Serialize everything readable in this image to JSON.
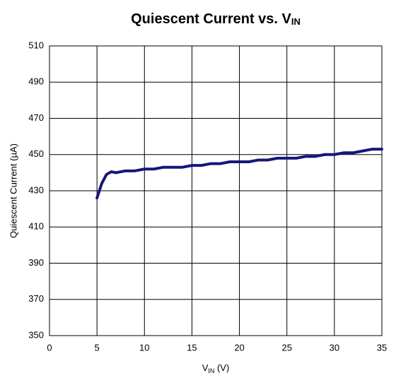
{
  "chart_data": {
    "type": "line",
    "title_parts": [
      {
        "text": "Quiescent Current vs. V",
        "sub": false
      },
      {
        "text": "IN",
        "sub": true
      }
    ],
    "x_label_parts": [
      {
        "text": "V",
        "sub": false
      },
      {
        "text": "IN",
        "sub": true
      },
      {
        "text": " (V)",
        "sub": false
      }
    ],
    "y_label": "Quiescent Current  (µA)",
    "x": [
      5,
      5.5,
      6,
      6.5,
      7,
      8,
      9,
      10,
      11,
      12,
      13,
      14,
      15,
      16,
      17,
      18,
      19,
      20,
      21,
      22,
      23,
      24,
      25,
      26,
      27,
      28,
      29,
      30,
      31,
      32,
      33,
      34,
      35
    ],
    "series": [
      {
        "name": "Quiescent Current",
        "color": "#16167a",
        "values": [
          426,
          434,
          439,
          440.5,
          440,
          441,
          441,
          442,
          442,
          443,
          443,
          443,
          444,
          444,
          445,
          445,
          446,
          446,
          446,
          447,
          447,
          448,
          448,
          448,
          449,
          449,
          450,
          450,
          451,
          451,
          452,
          453,
          453
        ]
      }
    ],
    "xlim": [
      0,
      35
    ],
    "xticks": [
      0,
      5,
      10,
      15,
      20,
      25,
      30,
      35
    ],
    "ylim": [
      350,
      510
    ],
    "yticks": [
      350,
      370,
      390,
      410,
      430,
      450,
      470,
      490,
      510
    ],
    "grid": true
  }
}
